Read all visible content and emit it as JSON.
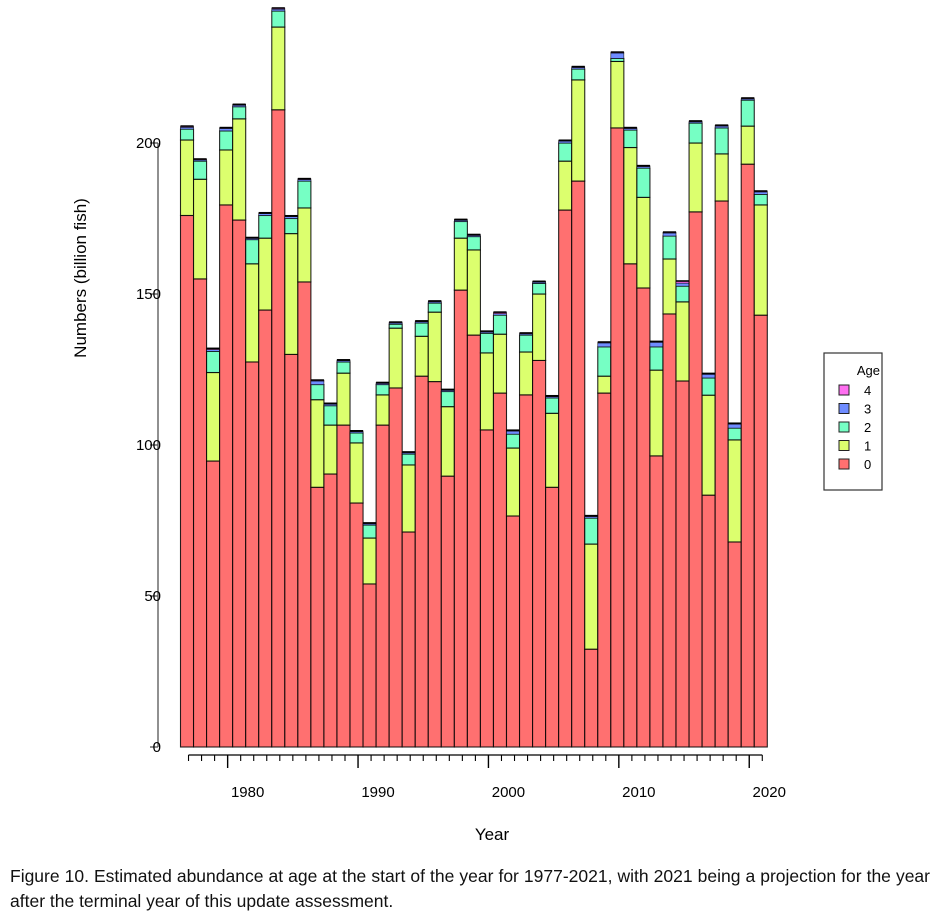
{
  "chart_data": {
    "type": "bar",
    "stacked": true,
    "title": "",
    "xlabel": "Year",
    "ylabel": "Numbers (billion fish)",
    "ylim": [
      0,
      245
    ],
    "yticks": [
      0,
      50,
      100,
      150,
      200
    ],
    "xticks_labeled": [
      1980,
      1990,
      2000,
      2010,
      2020
    ],
    "grid": false,
    "legend": {
      "title": "Age",
      "position": "right",
      "entries": [
        "4",
        "3",
        "2",
        "1",
        "0"
      ]
    },
    "categories": [
      1977,
      1978,
      1979,
      1980,
      1981,
      1982,
      1983,
      1984,
      1985,
      1986,
      1987,
      1988,
      1989,
      1990,
      1991,
      1992,
      1993,
      1994,
      1995,
      1996,
      1997,
      1998,
      1999,
      2000,
      2001,
      2002,
      2003,
      2004,
      2005,
      2006,
      2007,
      2008,
      2009,
      2010,
      2011,
      2012,
      2013,
      2014,
      2015,
      2016,
      2017,
      2018,
      2019,
      2020,
      2021
    ],
    "series": [
      {
        "name": "0",
        "color": "#ff7070",
        "values": [
          176,
          155,
          94.7,
          179.5,
          174.5,
          127.5,
          144.7,
          211,
          130,
          154,
          86,
          90.4,
          106.6,
          80.8,
          54,
          106.6,
          118.9,
          71.2,
          122.8,
          121,
          89.7,
          151.3,
          136.4,
          105,
          117.2,
          76.5,
          116.6,
          128,
          86,
          177.8,
          187.4,
          32.4,
          117.2,
          205,
          160,
          152,
          96.4,
          143.4,
          121.2,
          177.2,
          83.4,
          180.8,
          67.9,
          193,
          143
        ]
      },
      {
        "name": "1",
        "color": "#dcff6e",
        "values": [
          25,
          33,
          29.3,
          18.2,
          33.5,
          32.5,
          23.8,
          27.4,
          40,
          24.5,
          29,
          16.2,
          17.2,
          19.9,
          15.2,
          10,
          19.8,
          22.2,
          13.2,
          23,
          23,
          17.2,
          28.2,
          25.5,
          19.5,
          22.5,
          14.2,
          22,
          24.5,
          16.2,
          33.5,
          34.8,
          5.6,
          22,
          38.5,
          30,
          28.4,
          18.2,
          26.2,
          22.8,
          33.1,
          15.6,
          33.8,
          12.6,
          36.5
        ]
      },
      {
        "name": "2",
        "color": "#76ffc4",
        "values": [
          3.6,
          6,
          7,
          6.3,
          4,
          8,
          7.5,
          5.3,
          5,
          8.9,
          5,
          6.4,
          3.7,
          3.3,
          4.3,
          3.4,
          1.3,
          3.6,
          4.4,
          3,
          5,
          5.5,
          4.4,
          6.5,
          6.3,
          4.6,
          5.6,
          3.5,
          5.1,
          6,
          3.6,
          8.6,
          9.7,
          1,
          5.8,
          9.7,
          7.7,
          7.6,
          5.2,
          6.6,
          5.7,
          8.6,
          3.9,
          8.6,
          3.5
        ]
      },
      {
        "name": "3",
        "color": "#6f8cff",
        "values": [
          0.6,
          0.4,
          0.6,
          0.8,
          0.5,
          0.4,
          0.6,
          0.6,
          0.6,
          0.5,
          1.2,
          0.5,
          0.4,
          0.4,
          0.4,
          0.4,
          0.4,
          0.4,
          0.4,
          0.4,
          0.4,
          0.4,
          0.4,
          0.4,
          0.5,
          1,
          0.4,
          0.4,
          0.4,
          0.6,
          0.5,
          0.5,
          1.3,
          1.8,
          0.5,
          0.5,
          1.5,
          1,
          1,
          0.4,
          1.2,
          0.6,
          1.3,
          0.4,
          0.8
        ]
      },
      {
        "name": "4",
        "color": "#ff6ef0",
        "values": [
          0.4,
          0.3,
          0.4,
          0.3,
          0.3,
          0.3,
          0.3,
          0.4,
          0.3,
          0.3,
          0.3,
          0.3,
          0.3,
          0.3,
          0.3,
          0.3,
          0.3,
          0.3,
          0.3,
          0.3,
          0.3,
          0.3,
          0.3,
          0.3,
          0.5,
          0.3,
          0.3,
          0.3,
          0.3,
          0.3,
          0.3,
          0.3,
          0.3,
          0.3,
          0.3,
          0.3,
          0.3,
          0.3,
          0.7,
          0.3,
          0.3,
          0.3,
          0.3,
          0.3,
          0.3
        ]
      }
    ]
  },
  "caption": "Figure 10. Estimated abundance at age at the start of the year for 1977-2021, with 2021 being a projection for the year after the terminal year of this update assessment."
}
